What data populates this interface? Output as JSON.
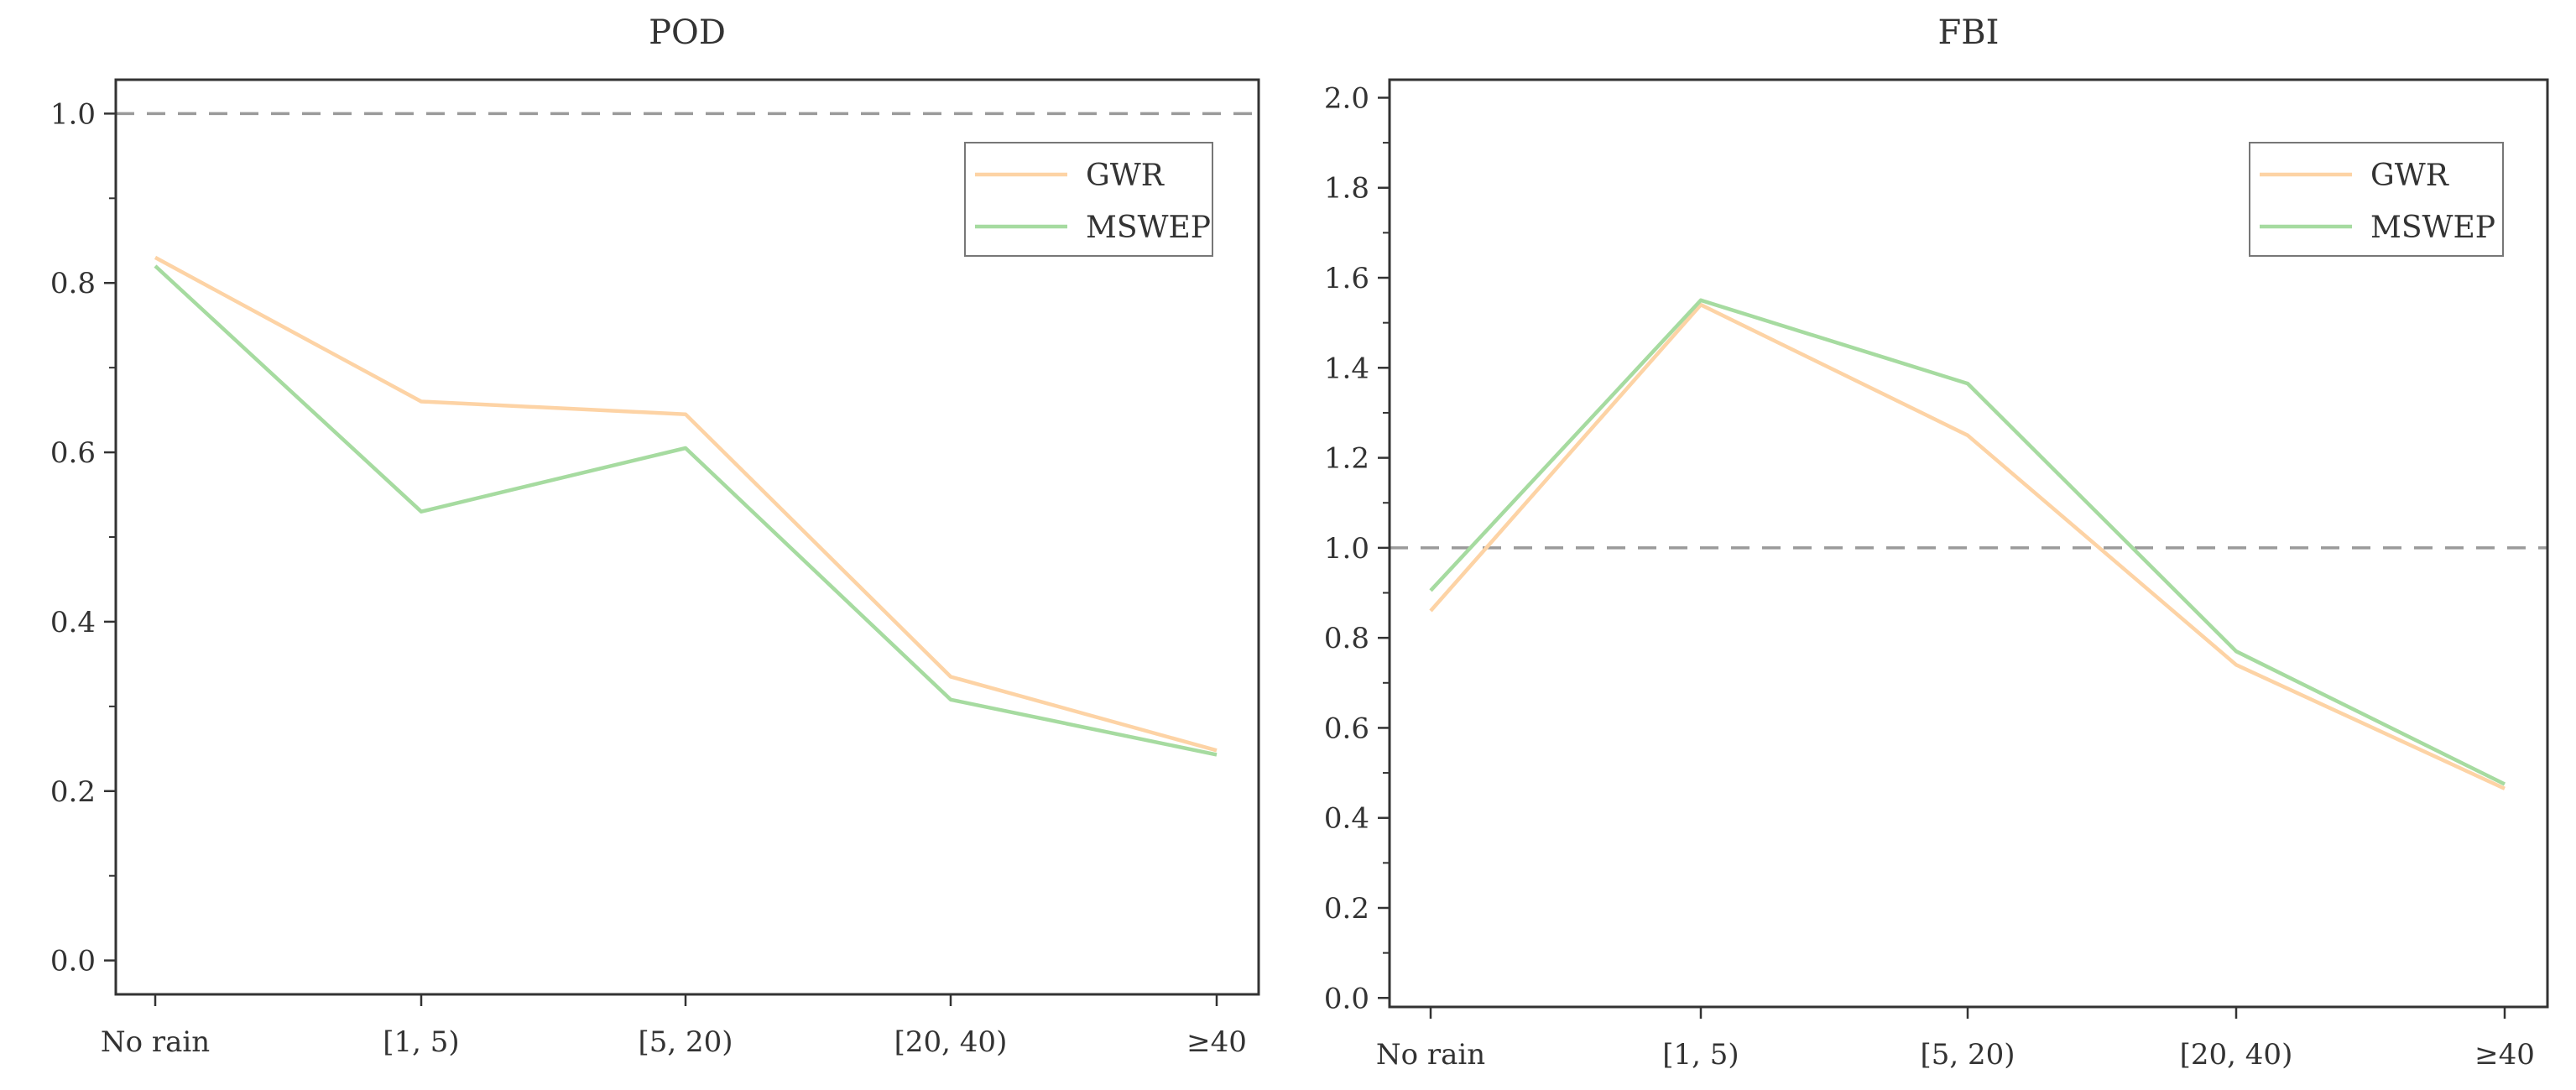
{
  "colors": {
    "GWR": "#fdd3a5",
    "MSWEP": "#a6dba0",
    "reference_line": "#9a9a9a",
    "axis": "#333333"
  },
  "chart_data": [
    {
      "type": "line",
      "title": "POD",
      "xlabel": "",
      "ylabel": "",
      "categories": [
        "No rain",
        "[1, 5)",
        "[5, 20)",
        "[20, 40)",
        "≥40"
      ],
      "ylim": [
        -0.04,
        1.04
      ],
      "yticks": [
        "0.0",
        "0.2",
        "0.4",
        "0.6",
        "0.8",
        "1.0"
      ],
      "y_tick_values": [
        0.0,
        0.2,
        0.4,
        0.6,
        0.8,
        1.0
      ],
      "reference_line": 1.0,
      "legend_position": "top-right",
      "grid": false,
      "series": [
        {
          "name": "GWR",
          "values": [
            0.83,
            0.66,
            0.645,
            0.335,
            0.248
          ]
        },
        {
          "name": "MSWEP",
          "values": [
            0.82,
            0.53,
            0.605,
            0.308,
            0.243
          ]
        }
      ]
    },
    {
      "type": "line",
      "title": "FBI",
      "xlabel": "",
      "ylabel": "",
      "categories": [
        "No rain",
        "[1, 5)",
        "[5, 20)",
        "[20, 40)",
        "≥40"
      ],
      "ylim": [
        -0.02,
        2.04
      ],
      "yticks": [
        "0.0",
        "0.2",
        "0.4",
        "0.6",
        "0.8",
        "1.0",
        "1.2",
        "1.4",
        "1.6",
        "1.8",
        "2.0"
      ],
      "y_tick_values": [
        0.0,
        0.2,
        0.4,
        0.6,
        0.8,
        1.0,
        1.2,
        1.4,
        1.6,
        1.8,
        2.0
      ],
      "reference_line": 1.0,
      "legend_position": "top-right",
      "grid": false,
      "series": [
        {
          "name": "GWR",
          "values": [
            0.86,
            1.54,
            1.25,
            0.74,
            0.465
          ]
        },
        {
          "name": "MSWEP",
          "values": [
            0.905,
            1.55,
            1.365,
            0.77,
            0.475
          ]
        }
      ]
    }
  ]
}
